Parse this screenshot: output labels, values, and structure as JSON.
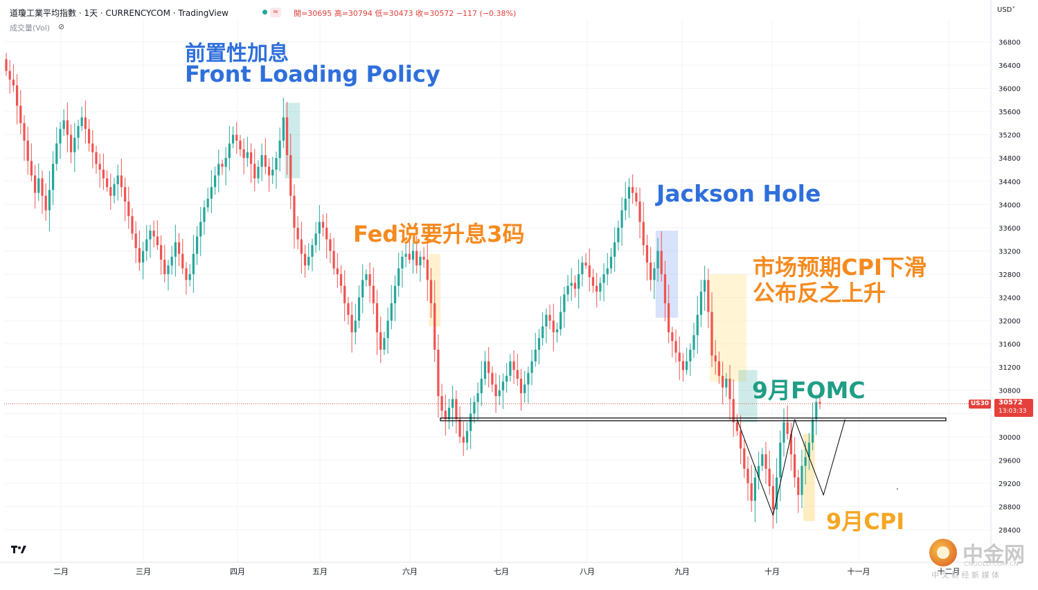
{
  "header": {
    "title": "道瓊工業平均指數 · 1天 · CURRENCYCOM · TradingView",
    "ohlc": "開=30695 高=30794 低=30473 收=30572 −117 (−0.38%)",
    "volume_label": "成交量(Vol)",
    "currency": "USD˅"
  },
  "price_tag": {
    "symbol": "US30",
    "price": "30572",
    "countdown": "13:03:33",
    "value": 30572
  },
  "annotations": {
    "front_loading_cn": "前置性加息",
    "front_loading_en": "Front Loading Policy",
    "fed_3": "Fed说要升息3码",
    "jackson_hole": "Jackson Hole",
    "cpi_expect_1": "市场预期CPI下滑",
    "cpi_expect_2": "公布反之上升",
    "sept_fomc": "9月FOMC",
    "sept_cpi": "9月CPI"
  },
  "watermark": {
    "name": "中金网",
    "url": "CNGOLD.COM.CN",
    "tagline": "中 文 财 经 新 媒 体"
  },
  "colors": {
    "up": "#26a69a",
    "down": "#ef5350",
    "annotation_blue": "#2f6fdb",
    "annotation_orange": "#f58a1f",
    "annotation_green": "#1f9e85",
    "price_tag": "#e5403b"
  },
  "chart_data": {
    "type": "candlestick",
    "y_ticks": [
      28400,
      28800,
      29200,
      29600,
      30000,
      30400,
      30800,
      31200,
      31600,
      32000,
      32400,
      32800,
      33200,
      33600,
      34000,
      34400,
      34800,
      35200,
      35600,
      36000,
      36400,
      36800
    ],
    "ylim": [
      28000,
      37200
    ],
    "x_ticks": [
      "二月",
      "三月",
      "四月",
      "五月",
      "六月",
      "七月",
      "八月",
      "九月",
      "十月",
      "十一月",
      "十二月"
    ],
    "support_level": 30300,
    "last_close": 30572,
    "closes": [
      36300,
      36150,
      36050,
      35700,
      35400,
      35100,
      34750,
      34500,
      34200,
      34450,
      34150,
      33900,
      34250,
      34700,
      35050,
      35300,
      35450,
      35200,
      34900,
      35150,
      35350,
      35500,
      35300,
      35050,
      34900,
      34700,
      34600,
      34450,
      34300,
      34150,
      34350,
      34500,
      34300,
      34050,
      33800,
      33500,
      33250,
      33000,
      33200,
      33400,
      33550,
      33450,
      33300,
      33050,
      32800,
      32950,
      33100,
      33350,
      33150,
      32900,
      32700,
      32800,
      33150,
      33450,
      33700,
      33950,
      34100,
      34300,
      34500,
      34700,
      34650,
      34800,
      35050,
      35200,
      35100,
      34950,
      34800,
      34900,
      34700,
      34450,
      34650,
      34850,
      34650,
      34500,
      34600,
      34800,
      35100,
      35500,
      34850,
      34150,
      33600,
      33400,
      33150,
      32950,
      33100,
      33300,
      33500,
      33700,
      33600,
      33400,
      33200,
      32900,
      32800,
      32600,
      32300,
      32100,
      31800,
      32000,
      32400,
      32700,
      32800,
      32600,
      32300,
      31800,
      31500,
      31700,
      32000,
      32300,
      32600,
      32900,
      33100,
      33150,
      33050,
      33200,
      32950,
      33100,
      33050,
      32700,
      32300,
      31500,
      30700,
      30450,
      30300,
      30500,
      30650,
      30300,
      30000,
      29900,
      30100,
      30400,
      30600,
      30750,
      31000,
      31300,
      31100,
      30900,
      30700,
      30800,
      30950,
      31050,
      31300,
      31150,
      31000,
      30750,
      30900,
      31100,
      31300,
      31500,
      31700,
      31900,
      32100,
      32000,
      31800,
      31850,
      32150,
      32450,
      32600,
      32650,
      32550,
      32800,
      33000,
      32950,
      32750,
      32600,
      32500,
      32650,
      32800,
      32900,
      33100,
      33350,
      33600,
      33900,
      34100,
      34300,
      34200,
      34050,
      33700,
      33300,
      33000,
      32700,
      32900,
      33200,
      32800,
      32300,
      31800,
      31650,
      31450,
      31300,
      31150,
      31300,
      31500,
      31750,
      32100,
      32500,
      32700,
      32150,
      31400,
      31300,
      31050,
      30850,
      31000,
      30650,
      30250,
      30100,
      29800,
      29450,
      29200,
      28900,
      29300,
      29500,
      29700,
      29450,
      29150,
      28750,
      29300,
      29900,
      30250,
      30050,
      29700,
      29300,
      29000,
      29500,
      29650,
      29900,
      30300,
      30600,
      30572
    ]
  }
}
